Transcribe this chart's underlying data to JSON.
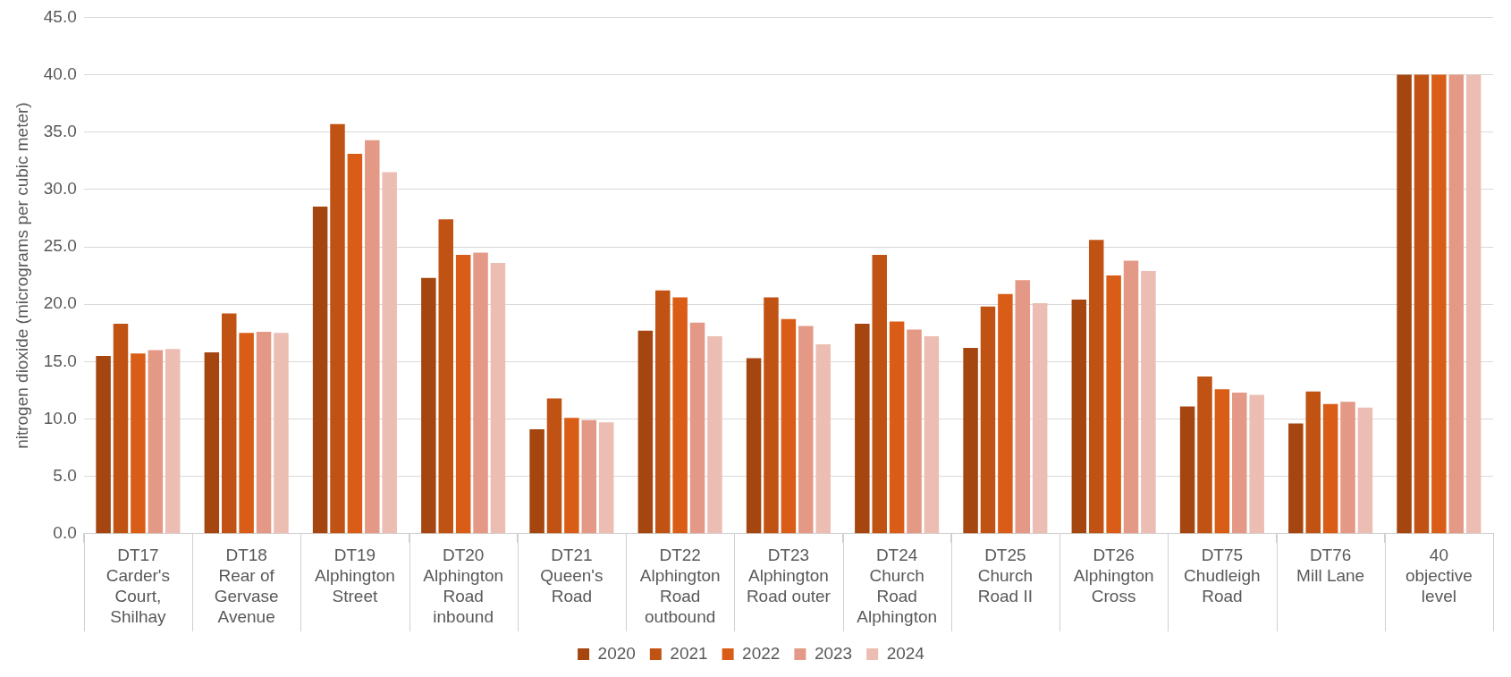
{
  "chart_data": {
    "type": "bar",
    "ylabel": "nitrogen dioxide (micrograms per cubic meter)",
    "categories": [
      "DT17\nCarder's Court, Shilhay",
      "DT18\nRear of Gervase Avenue",
      "DT19\nAlphington Street",
      "DT20\nAlphington Road inbound",
      "DT21\nQueen's Road",
      "DT22\nAlphington Road outbound",
      "DT23\nAlphington Road outer",
      "DT24\nChurch Road Alphington",
      "DT25\nChurch Road II",
      "DT26\nAlphington Cross",
      "DT75\nChudleigh Road",
      "DT76\nMill Lane",
      "40\nobjective level"
    ],
    "series": [
      {
        "name": "2020",
        "color": "#a5450f",
        "values": [
          15.5,
          15.8,
          28.5,
          22.3,
          9.1,
          17.7,
          15.3,
          18.3,
          16.2,
          20.4,
          11.1,
          9.6,
          40
        ]
      },
      {
        "name": "2021",
        "color": "#c05314",
        "values": [
          18.3,
          19.2,
          35.7,
          27.4,
          11.8,
          21.2,
          20.6,
          24.3,
          19.8,
          25.6,
          13.7,
          12.4,
          40
        ]
      },
      {
        "name": "2022",
        "color": "#d95d17",
        "values": [
          15.7,
          17.5,
          33.1,
          24.3,
          10.1,
          20.6,
          18.7,
          18.5,
          20.9,
          22.5,
          12.6,
          11.3,
          40
        ]
      },
      {
        "name": "2023",
        "color": "#e39985",
        "values": [
          16.0,
          17.6,
          34.3,
          24.5,
          9.9,
          18.4,
          18.1,
          17.8,
          22.1,
          23.8,
          12.3,
          11.5,
          40
        ]
      },
      {
        "name": "2024",
        "color": "#ecbdb2",
        "values": [
          16.1,
          17.5,
          31.5,
          23.6,
          9.7,
          17.2,
          16.5,
          17.2,
          20.1,
          22.9,
          12.1,
          11.0,
          40
        ]
      }
    ],
    "ylim": [
      0,
      45
    ],
    "yticks": [
      {
        "value": 0,
        "label": "0.0"
      },
      {
        "value": 5,
        "label": "5.0"
      },
      {
        "value": 10,
        "label": "10.0"
      },
      {
        "value": 15,
        "label": "15.0"
      },
      {
        "value": 20,
        "label": "20.0"
      },
      {
        "value": 25,
        "label": "25.0"
      },
      {
        "value": 30,
        "label": "30.0"
      },
      {
        "value": 35,
        "label": "35.0"
      },
      {
        "value": 40,
        "label": "40.0"
      },
      {
        "value": 45,
        "label": "45.0"
      }
    ],
    "grid": "y",
    "legend": "bottom"
  }
}
